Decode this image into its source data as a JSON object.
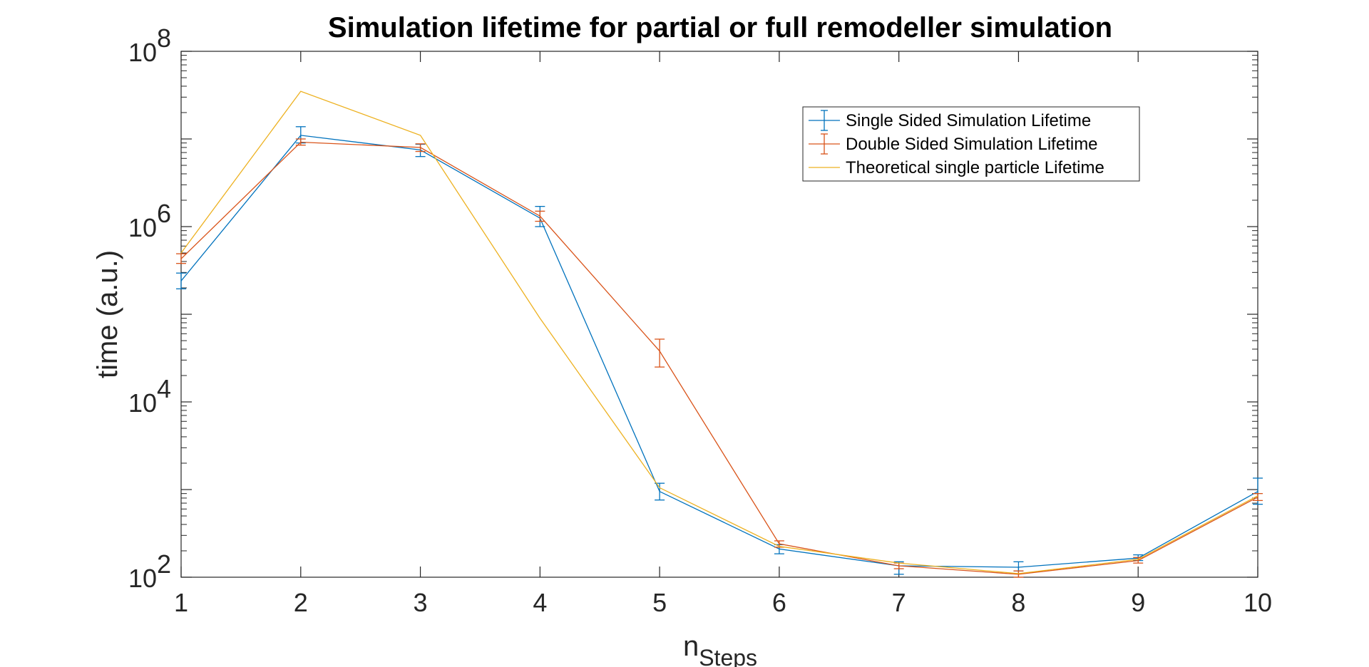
{
  "chart_data": {
    "type": "line",
    "title": "Simulation lifetime for partial or full remodeller simulation",
    "xlabel": "n",
    "xlabel_subscript": "Steps",
    "ylabel": "time (a.u.)",
    "yscale": "log",
    "xlim": [
      1,
      10
    ],
    "ylim": [
      100,
      100000000
    ],
    "x": [
      1,
      2,
      3,
      4,
      5,
      6,
      7,
      8,
      9,
      10
    ],
    "x_tick_labels": [
      "1",
      "2",
      "3",
      "4",
      "5",
      "6",
      "7",
      "8",
      "9",
      "10"
    ],
    "y_tick_labels": [
      {
        "value": 100,
        "base": "10",
        "exp": "2"
      },
      {
        "value": 10000,
        "base": "10",
        "exp": "4"
      },
      {
        "value": 1000000,
        "base": "10",
        "exp": "6"
      },
      {
        "value": 100000000,
        "base": "10",
        "exp": "8"
      }
    ],
    "legend_position": "top-right",
    "grid": false,
    "series": [
      {
        "name": "Single Sided Simulation Lifetime",
        "color": "#0072BD",
        "error_bars": true,
        "values": [
          240000,
          11000000,
          7500000,
          1250000,
          950,
          210,
          135,
          130,
          165,
          950
        ],
        "err_low": [
          195000,
          9000000,
          6300000,
          1000000,
          760,
          185,
          108,
          118,
          155,
          680
        ],
        "err_high": [
          295000,
          13800000,
          8700000,
          1700000,
          1180,
          235,
          150,
          150,
          180,
          1350
        ]
      },
      {
        "name": "Double Sided Simulation Lifetime",
        "color": "#D95319",
        "error_bars": true,
        "values": [
          430000,
          9200000,
          8000000,
          1320000,
          38000,
          240,
          135,
          108,
          155,
          820
        ],
        "err_low": [
          380000,
          8500000,
          7200000,
          1150000,
          25000,
          220,
          125,
          100,
          145,
          750
        ],
        "err_high": [
          490000,
          10000000,
          8800000,
          1500000,
          52000,
          260,
          145,
          118,
          168,
          900
        ]
      },
      {
        "name": "Theoretical single particle Lifetime",
        "color": "#EDB120",
        "error_bars": false,
        "values": [
          500000,
          35000000,
          11000000,
          90000,
          1050,
          225,
          145,
          110,
          160,
          850
        ]
      }
    ]
  }
}
